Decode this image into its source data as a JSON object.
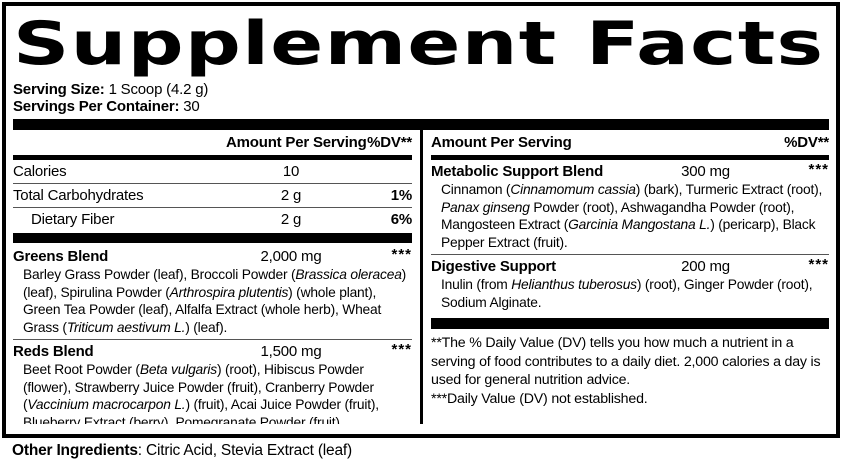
{
  "title": "Supplement Facts",
  "serving": {
    "size_label": "Serving Size:",
    "size_value": " 1 Scoop (4.2 g)",
    "container_label": "Servings Per Container:",
    "container_value": " 30"
  },
  "table_header": {
    "amount": "Amount Per Serving",
    "dv": "%DV**"
  },
  "left": {
    "nutrients": [
      {
        "name": "Calories",
        "amount": "10",
        "dv": ""
      },
      {
        "name": "Total Carbohydrates",
        "amount": "2 g",
        "dv": "1%"
      },
      {
        "name": "Dietary Fiber",
        "amount": "2 g",
        "dv": "6%"
      }
    ],
    "blends": [
      {
        "name": "Greens Blend",
        "amount": "2,000 mg",
        "dv": "***",
        "ingredients": "Barley Grass Powder (leaf), Broccoli Powder (*Brassica oleracea*) (leaf), Spirulina Powder (*Arthrospira plutentis*) (whole plant), Green Tea Powder (leaf), Alfalfa Extract (whole herb), Wheat Grass (*Triticum aestivum L.*) (leaf)."
      },
      {
        "name": "Reds Blend",
        "amount": "1,500 mg",
        "dv": "***",
        "ingredients": "Beet Root Powder (*Beta vulgaris*) (root), Hibiscus Powder (flower), Strawberry Juice Powder (fruit), Cranberry Powder (*Vaccinium macrocarpon L.*) (fruit), Acai Juice Powder (fruit), Blueberry Extract (berry), Pomegranate Powder (fruit)."
      }
    ]
  },
  "right": {
    "blends": [
      {
        "name": "Metabolic Support Blend",
        "amount": "300 mg",
        "dv": "***",
        "ingredients": "Cinnamon (*Cinnamomum cassia*) (bark), Turmeric Extract (root), *Panax ginseng* Powder (root), Ashwagandha Powder (root), Mangosteen Extract (*Garcinia Mangostana L.*) (pericarp), Black Pepper Extract (fruit)."
      },
      {
        "name": "Digestive Support",
        "amount": "200 mg",
        "dv": "***",
        "ingredients": "Inulin (from *Helianthus tuberosus*) (root), Ginger Powder (root), Sodium Alginate."
      }
    ],
    "footnotes": [
      "**The % Daily Value (DV) tells you how much a nutrient in a serving of food contributes to a daily diet. 2,000 calories a day is used for general nutrition advice.",
      "***Daily Value (DV) not established."
    ]
  },
  "other_ingredients": {
    "label": "Other Ingredients",
    "value": ": Citric Acid, Stevia Extract (leaf)"
  },
  "colors": {
    "text": "#000000",
    "background": "#ffffff"
  }
}
